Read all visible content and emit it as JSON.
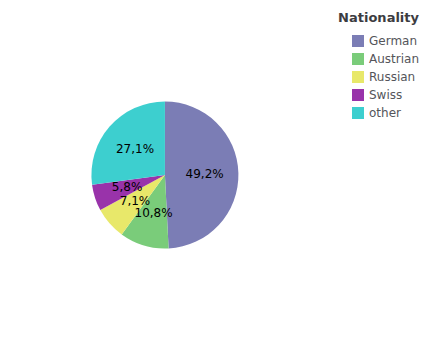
{
  "chart_data": {
    "type": "pie",
    "title": "Nationality",
    "categories": [
      "German",
      "Austrian",
      "Russian",
      "Swiss",
      "other"
    ],
    "values": [
      49.2,
      10.8,
      7.1,
      5.8,
      27.1
    ],
    "value_labels": [
      "49,2%",
      "10,8%",
      "7,1%",
      "5,8%",
      "27,1%"
    ],
    "colors": [
      "#7b7db5",
      "#7acc7a",
      "#e8e86a",
      "#9933aa",
      "#3dcfcf"
    ],
    "data_labels": true,
    "legend": "upper right"
  }
}
